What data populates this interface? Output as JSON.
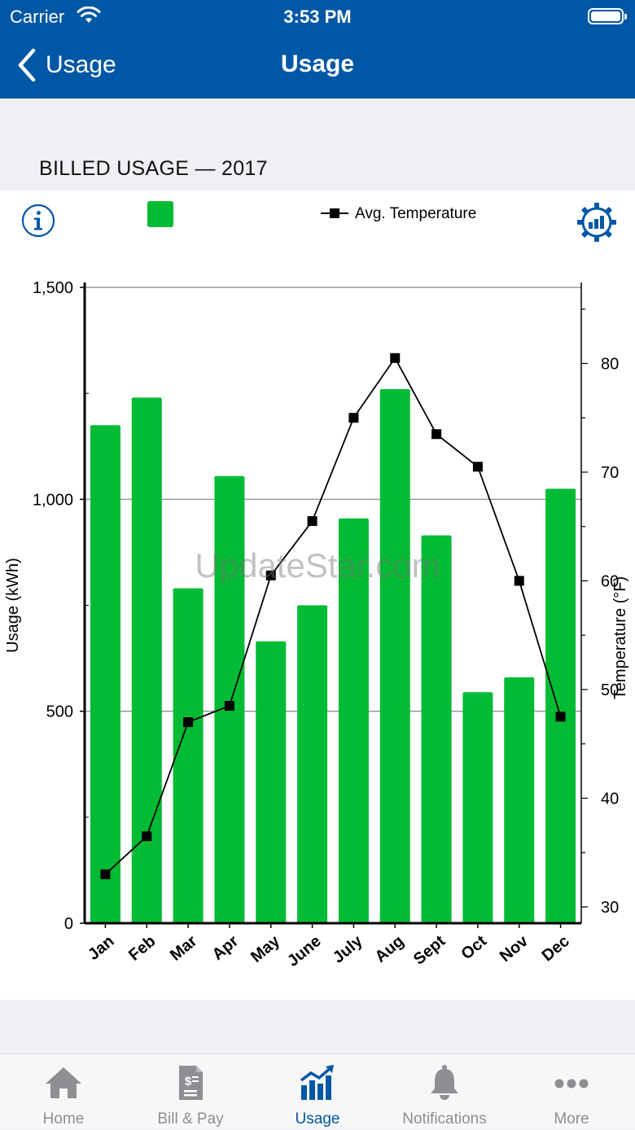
{
  "status_bar": {
    "carrier": "Carrier",
    "time": "3:53 PM"
  },
  "nav": {
    "back_label": "Usage",
    "title": "Usage"
  },
  "section": {
    "header": "BILLED USAGE — 2017"
  },
  "legend": {
    "temperature_label": "Avg. Temperature"
  },
  "watermark": "UpdateStar.com",
  "tabs": [
    {
      "label": "Home",
      "icon": "home-icon",
      "active": false
    },
    {
      "label": "Bill & Pay",
      "icon": "bill-icon",
      "active": false
    },
    {
      "label": "Usage",
      "icon": "usage-chart-icon",
      "active": true
    },
    {
      "label": "Notifications",
      "icon": "bell-icon",
      "active": false
    },
    {
      "label": "More",
      "icon": "more-dots-icon",
      "active": false
    }
  ],
  "colors": {
    "brand": "#0057a6",
    "bar": "#00bb33",
    "inactive": "#8e8e93"
  },
  "chart_data": {
    "type": "bar",
    "categories": [
      "Jan",
      "Feb",
      "Mar",
      "Apr",
      "May",
      "June",
      "July",
      "Aug",
      "Sept",
      "Oct",
      "Nov",
      "Dec"
    ],
    "series": [
      {
        "type": "bar",
        "axis": "left",
        "values": [
          1175,
          1240,
          790,
          1055,
          665,
          750,
          955,
          1260,
          915,
          545,
          580,
          1025
        ]
      },
      {
        "name": "Avg. Temperature",
        "type": "line",
        "axis": "right",
        "values": [
          33,
          36.5,
          47,
          48.5,
          60.5,
          65.5,
          75,
          80.5,
          73.5,
          70.5,
          60,
          47.5
        ]
      }
    ],
    "ylabel": "Usage (kWh)",
    "y2label": "Temperature (°F)",
    "ylim": [
      0,
      1500
    ],
    "y2lim": [
      28.5,
      87
    ],
    "yticks": [
      0,
      500,
      1000,
      1500
    ],
    "yticklabels": [
      "0",
      "500",
      "1,000",
      "1,500"
    ],
    "y2ticks": [
      30,
      40,
      50,
      60,
      70,
      80
    ],
    "grid": true,
    "legend": "top"
  }
}
